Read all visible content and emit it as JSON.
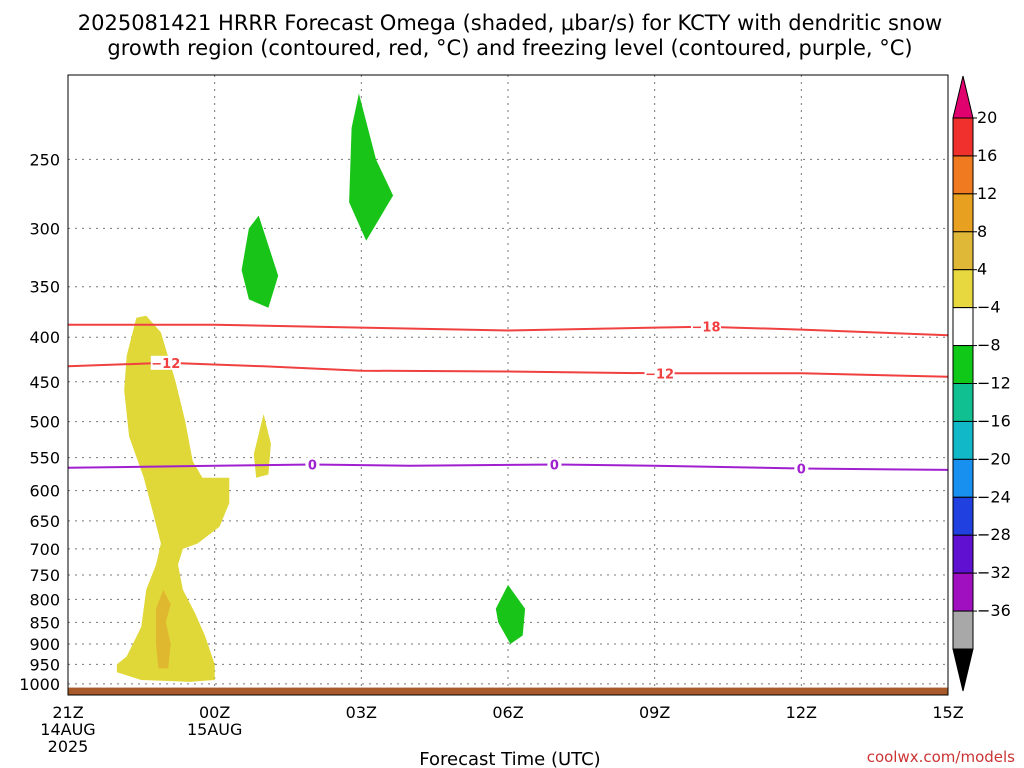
{
  "chart_data": {
    "type": "heatmap",
    "title_lines": [
      "2025081421 HRRR Forecast Omega (shaded, μbar/s) for KCTY with dendritic snow",
      "growth region (contoured, red, °C) and freezing level (contoured, purple, °C)"
    ],
    "xlabel": "Forecast Time (UTC)",
    "credit": "coolwx.com/models",
    "x_range_hours": [
      0,
      18
    ],
    "x_ticks": [
      {
        "hour": 0,
        "lines": [
          "21Z",
          "14AUG",
          "2025"
        ]
      },
      {
        "hour": 3,
        "lines": [
          "00Z",
          "15AUG"
        ]
      },
      {
        "hour": 6,
        "lines": [
          "03Z"
        ]
      },
      {
        "hour": 9,
        "lines": [
          "06Z"
        ]
      },
      {
        "hour": 12,
        "lines": [
          "09Z"
        ]
      },
      {
        "hour": 15,
        "lines": [
          "12Z"
        ]
      },
      {
        "hour": 18,
        "lines": [
          "15Z"
        ]
      }
    ],
    "y_axis": {
      "scale": "log",
      "unit": "hPa",
      "range": [
        1030,
        200
      ],
      "reversed": true
    },
    "y_ticks": [
      250,
      300,
      350,
      400,
      450,
      500,
      550,
      600,
      650,
      700,
      750,
      800,
      850,
      900,
      950,
      1000
    ],
    "colorbar": {
      "labels": [
        20,
        16,
        12,
        8,
        4,
        -4,
        -8,
        -12,
        -16,
        -20,
        -24,
        -28,
        -32,
        -36
      ],
      "bins": [
        {
          "color": "#e0006e"
        },
        {
          "color": "#f0302d"
        },
        {
          "color": "#f07a20"
        },
        {
          "color": "#e8a020"
        },
        {
          "color": "#e0b838"
        },
        {
          "color": "#e8d840"
        },
        {
          "color": "#ffffff"
        },
        {
          "color": "#10c818"
        },
        {
          "color": "#10c090"
        },
        {
          "color": "#10b8c8"
        },
        {
          "color": "#1890f0"
        },
        {
          "color": "#2040e0"
        },
        {
          "color": "#6010d0"
        },
        {
          "color": "#a010c0"
        },
        {
          "color": "#a8a8a8"
        },
        {
          "color": "#000000"
        }
      ]
    },
    "omega_regions": [
      {
        "color": "#e0d838",
        "points": [
          [
            1.4,
            380
          ],
          [
            1.6,
            378
          ],
          [
            1.9,
            395
          ],
          [
            2.2,
            450
          ],
          [
            2.4,
            500
          ],
          [
            2.55,
            555
          ],
          [
            2.75,
            580
          ],
          [
            3.3,
            580
          ],
          [
            3.3,
            620
          ],
          [
            3.1,
            660
          ],
          [
            2.65,
            690
          ],
          [
            2.35,
            700
          ],
          [
            2.25,
            730
          ],
          [
            2.35,
            780
          ],
          [
            2.6,
            830
          ],
          [
            2.8,
            880
          ],
          [
            3.0,
            950
          ],
          [
            3.0,
            990
          ],
          [
            2.5,
            995
          ],
          [
            1.5,
            990
          ],
          [
            1.0,
            970
          ],
          [
            1.0,
            950
          ],
          [
            1.2,
            930
          ],
          [
            1.5,
            860
          ],
          [
            1.6,
            780
          ],
          [
            1.8,
            730
          ],
          [
            1.9,
            690
          ],
          [
            1.75,
            640
          ],
          [
            1.55,
            580
          ],
          [
            1.25,
            520
          ],
          [
            1.15,
            460
          ],
          [
            1.2,
            420
          ]
        ]
      },
      {
        "color": "#e0d838",
        "points": [
          [
            4.0,
            490
          ],
          [
            4.15,
            530
          ],
          [
            4.1,
            575
          ],
          [
            3.85,
            580
          ],
          [
            3.8,
            545
          ]
        ]
      },
      {
        "color": "#e0d838",
        "points": [
          [
            4.95,
            178
          ],
          [
            5.0,
            195
          ],
          [
            4.9,
            195
          ]
        ]
      },
      {
        "color": "#e0b830",
        "points": [
          [
            1.95,
            780
          ],
          [
            2.1,
            810
          ],
          [
            2.0,
            850
          ],
          [
            2.1,
            900
          ],
          [
            2.05,
            960
          ],
          [
            1.85,
            960
          ],
          [
            1.8,
            900
          ],
          [
            1.8,
            820
          ]
        ]
      },
      {
        "color": "#18c418",
        "points": [
          [
            3.9,
            290
          ],
          [
            4.3,
            340
          ],
          [
            4.1,
            370
          ],
          [
            3.7,
            362
          ],
          [
            3.55,
            335
          ],
          [
            3.7,
            300
          ]
        ]
      },
      {
        "color": "#18c418",
        "points": [
          [
            5.95,
            210
          ],
          [
            6.3,
            250
          ],
          [
            6.65,
            275
          ],
          [
            6.1,
            310
          ],
          [
            5.75,
            280
          ],
          [
            5.8,
            230
          ]
        ]
      },
      {
        "color": "#18c418",
        "points": [
          [
            9.0,
            770
          ],
          [
            9.35,
            820
          ],
          [
            9.3,
            880
          ],
          [
            9.05,
            900
          ],
          [
            8.8,
            850
          ],
          [
            8.75,
            820
          ]
        ]
      }
    ],
    "contours": [
      {
        "value": -18,
        "color": "#f04040",
        "label": "−18",
        "label_hour": 13.05,
        "points": [
          [
            0,
            387
          ],
          [
            3,
            387
          ],
          [
            6,
            390
          ],
          [
            9,
            393
          ],
          [
            12,
            390
          ],
          [
            13,
            389
          ],
          [
            15,
            392
          ],
          [
            18,
            398
          ]
        ]
      },
      {
        "value": -12,
        "color": "#f04040",
        "label": "−12",
        "label_hour": 2.0,
        "label2_hour": 12.1,
        "points": [
          [
            0,
            432
          ],
          [
            2,
            428
          ],
          [
            4,
            432
          ],
          [
            6,
            437
          ],
          [
            9,
            438
          ],
          [
            12,
            440
          ],
          [
            15,
            440
          ],
          [
            18,
            444
          ]
        ]
      },
      {
        "value": 0,
        "color": "#a020d0",
        "label": "0",
        "label_hour": 5.0,
        "label2_hour": 9.95,
        "label3_hour": 15.0,
        "points": [
          [
            0,
            565
          ],
          [
            3,
            562
          ],
          [
            5,
            560
          ],
          [
            7,
            562
          ],
          [
            10,
            560
          ],
          [
            12,
            562
          ],
          [
            15,
            566
          ],
          [
            18,
            568
          ]
        ]
      }
    ],
    "terrain": {
      "color": "#a85a2a",
      "top_hpa": 1010
    }
  }
}
